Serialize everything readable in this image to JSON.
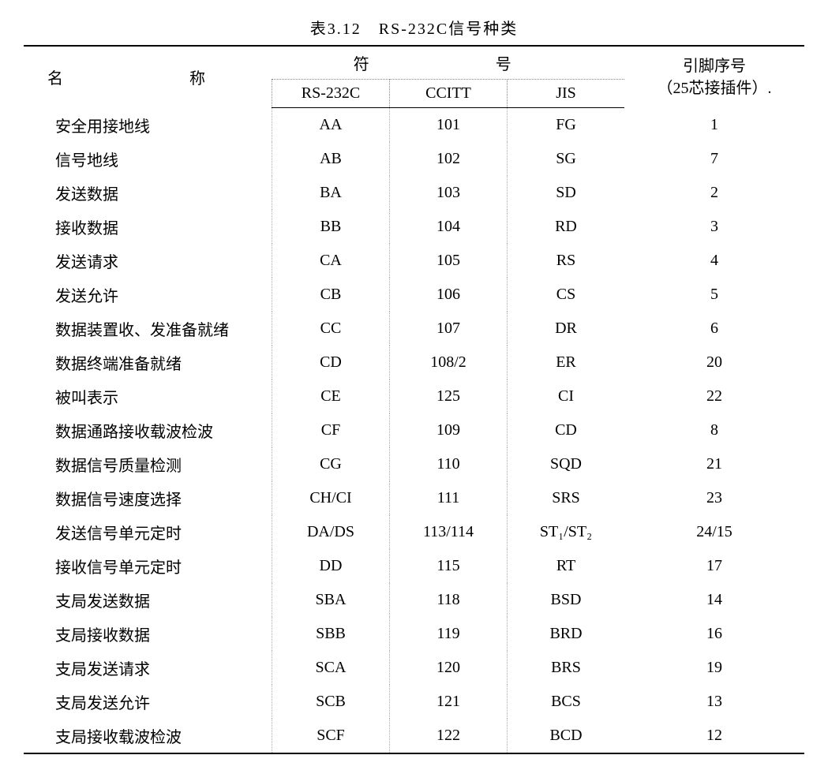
{
  "caption": "表3.12　RS-232C信号种类",
  "headers": {
    "name": "名　　称",
    "symbol_group": "符　　号",
    "sub_rs232c": "RS-232C",
    "sub_ccitt": "CCITT",
    "sub_jis": "JIS",
    "pin_line1": "引脚序号",
    "pin_line2": "（25芯接插件）."
  },
  "rows": [
    {
      "name": "安全用接地线",
      "rs": "AA",
      "ccitt": "101",
      "jis": "FG",
      "pin": "1"
    },
    {
      "name": "信号地线",
      "rs": "AB",
      "ccitt": "102",
      "jis": "SG",
      "pin": "7"
    },
    {
      "name": "发送数据",
      "rs": "BA",
      "ccitt": "103",
      "jis": "SD",
      "pin": "2"
    },
    {
      "name": "接收数据",
      "rs": "BB",
      "ccitt": "104",
      "jis": "RD",
      "pin": "3"
    },
    {
      "name": "发送请求",
      "rs": "CA",
      "ccitt": "105",
      "jis": "RS",
      "pin": "4"
    },
    {
      "name": "发送允许",
      "rs": "CB",
      "ccitt": "106",
      "jis": "CS",
      "pin": "5"
    },
    {
      "name": "数据装置收、发准备就绪",
      "rs": "CC",
      "ccitt": "107",
      "jis": "DR",
      "pin": "6"
    },
    {
      "name": "数据终端准备就绪",
      "rs": "CD",
      "ccitt": "108/2",
      "jis": "ER",
      "pin": "20"
    },
    {
      "name": "被叫表示",
      "rs": "CE",
      "ccitt": "125",
      "jis": "CI",
      "pin": "22"
    },
    {
      "name": "数据通路接收载波检波",
      "rs": "CF",
      "ccitt": "109",
      "jis": "CD",
      "pin": "8"
    },
    {
      "name": "数据信号质量检测",
      "rs": "CG",
      "ccitt": "110",
      "jis": "SQD",
      "pin": "21"
    },
    {
      "name": "数据信号速度选择",
      "rs": "CH/CI",
      "ccitt": "111",
      "jis": "SRS",
      "pin": "23"
    },
    {
      "name": "发送信号单元定时",
      "rs": "DA/DS",
      "ccitt": "113/114",
      "jis": "ST₁/ST₂",
      "pin": "24/15"
    },
    {
      "name": "接收信号单元定时",
      "rs": "DD",
      "ccitt": "115",
      "jis": "RT",
      "pin": "17"
    },
    {
      "name": "支局发送数据",
      "rs": "SBA",
      "ccitt": "118",
      "jis": "BSD",
      "pin": "14"
    },
    {
      "name": "支局接收数据",
      "rs": "SBB",
      "ccitt": "119",
      "jis": "BRD",
      "pin": "16"
    },
    {
      "name": "支局发送请求",
      "rs": "SCA",
      "ccitt": "120",
      "jis": "BRS",
      "pin": "19"
    },
    {
      "name": "支局发送允许",
      "rs": "SCB",
      "ccitt": "121",
      "jis": "BCS",
      "pin": "13"
    },
    {
      "name": "支局接收载波检波",
      "rs": "SCF",
      "ccitt": "122",
      "jis": "BCD",
      "pin": "12"
    }
  ]
}
